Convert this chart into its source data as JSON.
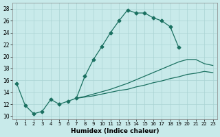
{
  "xlabel": "Humidex (Indice chaleur)",
  "background_color": "#c8eaea",
  "grid_color": "#aad4d4",
  "line_color": "#1a7060",
  "hours": [
    0,
    1,
    2,
    3,
    4,
    5,
    6,
    7,
    8,
    9,
    10,
    11,
    12,
    13,
    14,
    15,
    16,
    17,
    18,
    19,
    20,
    21,
    22,
    23
  ],
  "line_main": [
    15.5,
    11.8,
    10.4,
    10.8,
    12.8,
    12.0,
    12.5,
    13.0,
    16.7,
    19.5,
    21.7,
    24.0,
    26.0,
    27.8,
    27.3,
    27.3,
    26.5,
    26.0,
    25.0,
    21.5,
    null,
    null,
    null,
    null
  ],
  "line_mid": [
    null,
    null,
    null,
    null,
    null,
    null,
    null,
    13.0,
    13.3,
    13.7,
    14.1,
    14.5,
    15.0,
    15.5,
    16.1,
    16.7,
    17.3,
    17.9,
    18.5,
    19.1,
    19.5,
    19.5,
    18.8,
    18.5
  ],
  "line_low": [
    null,
    null,
    null,
    null,
    null,
    null,
    null,
    13.0,
    13.2,
    13.4,
    13.7,
    14.0,
    14.3,
    14.5,
    14.9,
    15.2,
    15.6,
    15.9,
    16.3,
    16.6,
    17.0,
    17.2,
    17.5,
    17.3
  ],
  "ylim": [
    9.5,
    29
  ],
  "xlim": [
    -0.5,
    23.5
  ],
  "yticks": [
    10,
    12,
    14,
    16,
    18,
    20,
    22,
    24,
    26,
    28
  ],
  "xticks": [
    0,
    1,
    2,
    3,
    4,
    5,
    6,
    7,
    8,
    9,
    10,
    11,
    12,
    13,
    14,
    15,
    16,
    17,
    18,
    19,
    20,
    21,
    22,
    23
  ]
}
